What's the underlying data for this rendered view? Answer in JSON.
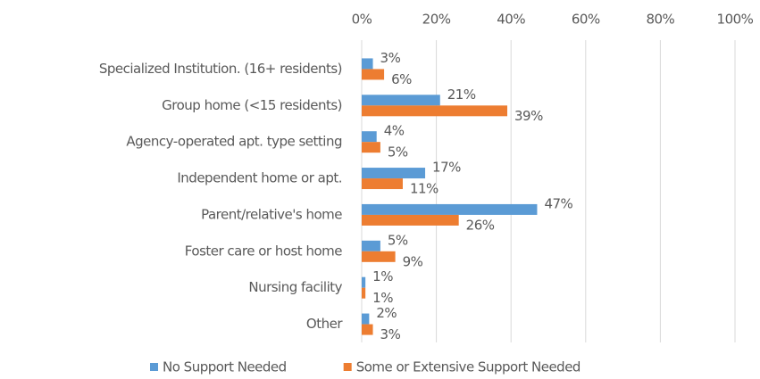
{
  "chart_data": {
    "type": "bar",
    "orientation": "horizontal",
    "categories": [
      "Specialized Institution. (16+ residents)",
      "Group home (<15 residents)",
      "Agency-operated apt. type setting",
      "Independent home or apt.",
      "Parent/relative's home",
      "Foster care or host home",
      "Nursing facility",
      "Other"
    ],
    "series": [
      {
        "name": "No Support Needed",
        "color": "#5b9bd5",
        "values": [
          3,
          21,
          4,
          17,
          47,
          5,
          1,
          2
        ],
        "value_labels": [
          "3%",
          "21%",
          "4%",
          "17%",
          "47%",
          "5%",
          "1%",
          "2%"
        ]
      },
      {
        "name": "Some or Extensive Support Needed",
        "color": "#ed7d31",
        "values": [
          6,
          39,
          5,
          11,
          26,
          9,
          1,
          3
        ],
        "value_labels": [
          "6%",
          "39%",
          "5%",
          "11%",
          "26%",
          "9%",
          "1%",
          "3%"
        ]
      }
    ],
    "xlim": [
      0,
      100
    ],
    "xticks": [
      {
        "value": 0,
        "label": "0%"
      },
      {
        "value": 20,
        "label": "20%"
      },
      {
        "value": 40,
        "label": "40%"
      },
      {
        "value": 60,
        "label": "60%"
      },
      {
        "value": 80,
        "label": "80%"
      },
      {
        "value": 100,
        "label": "100%"
      }
    ],
    "grid": true,
    "legend": "bottom"
  }
}
